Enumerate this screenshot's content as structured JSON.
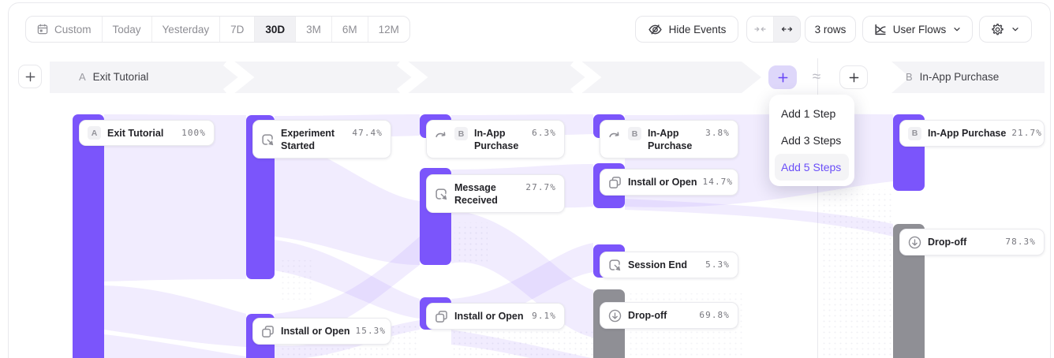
{
  "toolbar": {
    "date_ranges": [
      {
        "label": "Custom",
        "selected": false,
        "icon": "calendar-icon"
      },
      {
        "label": "Today",
        "selected": false
      },
      {
        "label": "Yesterday",
        "selected": false
      },
      {
        "label": "7D",
        "selected": false
      },
      {
        "label": "30D",
        "selected": true
      },
      {
        "label": "3M",
        "selected": false
      },
      {
        "label": "6M",
        "selected": false
      },
      {
        "label": "12M",
        "selected": false
      }
    ],
    "hide_events_label": "Hide Events",
    "rows_label": "3 rows",
    "view_selector_label": "User Flows"
  },
  "flow_header": {
    "section_a_badge": "A",
    "section_a_label": "Exit Tutorial",
    "section_b_badge": "B",
    "section_b_label": "In-App Purchase",
    "approx_symbol": "≈"
  },
  "add_steps_menu": {
    "items": [
      {
        "label": "Add 1 Step",
        "highlighted": false
      },
      {
        "label": "Add 3 Steps",
        "highlighted": false
      },
      {
        "label": "Add 5 Steps",
        "highlighted": true
      }
    ]
  },
  "colors": {
    "accent_purple": "#7b55fb",
    "bar_gray": "#8f8f95",
    "flow_band": "rgba(123,85,250,0.11)",
    "menu_highlight_text": "#6a4ef8"
  },
  "chart_data": {
    "type": "sankey-flow",
    "columns": [
      {
        "nodes": [
          {
            "id": "a1",
            "badge": "A",
            "label": "Exit Tutorial",
            "percent": "100%"
          }
        ]
      },
      {
        "nodes": [
          {
            "id": "b1",
            "icon": "cursor-event-icon",
            "label": "Experiment Started",
            "percent": "47.4%"
          },
          {
            "id": "b2",
            "icon": "install-open-icon",
            "label": "Install or Open",
            "percent": "15.3%"
          }
        ]
      },
      {
        "nodes": [
          {
            "id": "c1",
            "icon": "goal-arrow-icon",
            "badge": "B",
            "label": "In-App Purchase",
            "percent": "6.3%"
          },
          {
            "id": "c2",
            "icon": "cursor-event-icon",
            "label": "Message Received",
            "percent": "27.7%"
          },
          {
            "id": "c3",
            "icon": "install-open-icon",
            "label": "Install or Open",
            "percent": "9.1%"
          }
        ]
      },
      {
        "nodes": [
          {
            "id": "d1",
            "icon": "goal-arrow-icon",
            "badge": "B",
            "label": "In-App Purchase",
            "percent": "3.8%"
          },
          {
            "id": "d2",
            "icon": "install-open-icon",
            "label": "Install or Open",
            "percent": "14.7%"
          },
          {
            "id": "d3",
            "icon": "cursor-event-icon",
            "label": "Session End",
            "percent": "5.3%"
          },
          {
            "id": "d4",
            "icon": "drop-off-icon",
            "label": "Drop-off",
            "percent": "69.8%",
            "kind": "dropoff"
          }
        ]
      },
      {
        "nodes": [
          {
            "id": "e1",
            "badge": "B",
            "label": "In-App Purchase",
            "percent": "21.7%"
          },
          {
            "id": "e2",
            "icon": "drop-off-icon",
            "label": "Drop-off",
            "percent": "78.3%",
            "kind": "dropoff"
          }
        ]
      }
    ]
  }
}
